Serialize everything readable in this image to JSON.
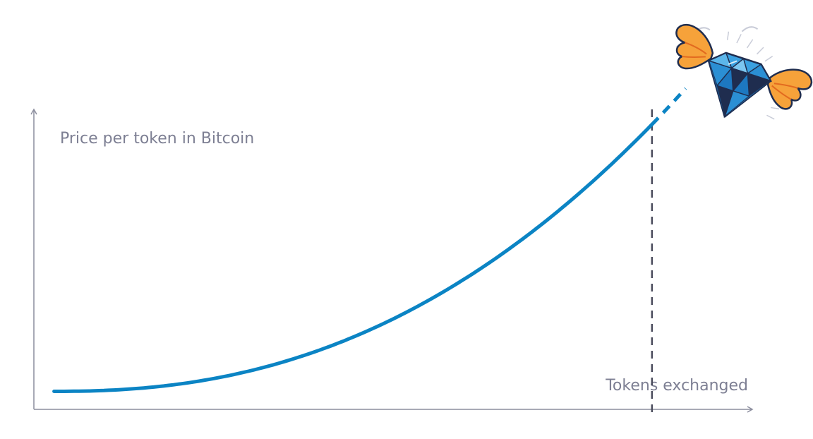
{
  "chart_data": {
    "type": "line",
    "title": "",
    "ylabel": "Price per token in Bitcoin",
    "xlabel": "Tokens exchanged",
    "xlim": [
      0,
      1
    ],
    "ylim": [
      0,
      1
    ],
    "grid": false,
    "legend": "none",
    "curve": {
      "exponent": 2.3,
      "start": [
        0.03,
        0.06
      ],
      "end": [
        0.92,
        0.95
      ]
    },
    "projection": {
      "style": "dashed",
      "end": [
        0.97,
        1.07
      ]
    },
    "marker": {
      "x": 0.92,
      "style": "dashed-vertical"
    },
    "mascot_icon": "flying-diamond-icon"
  },
  "colors": {
    "curve": "#0b84c4",
    "axis": "#8c8e9e",
    "marker": "#4a4c5c",
    "label": "#7d7f93",
    "diamond_light": "#3aa0e0",
    "diamond_mid": "#1d78c0",
    "diamond_dark": "#1f2d4f",
    "wing": "#f6a23a",
    "wing_dark": "#e26a1f"
  }
}
